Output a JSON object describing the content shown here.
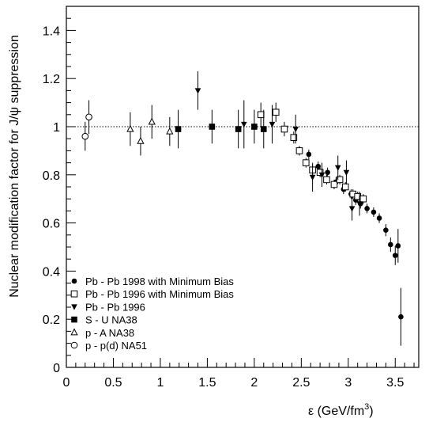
{
  "chart_data": {
    "type": "scatter",
    "ylabel": "Nuclear modification factor for J/ψ suppression",
    "xlabel_prefix": "ε  (GeV/fm",
    "xlabel_sup": "3",
    "xlabel_suffix": ")",
    "xlim": [
      0,
      3.75
    ],
    "ylim": [
      0,
      1.5
    ],
    "x_ticks": [
      0,
      0.5,
      1,
      1.5,
      2,
      2.5,
      3,
      3.5
    ],
    "x_tick_labels": [
      "0",
      "0.5",
      "1",
      "1.5",
      "2",
      "2.5",
      "3",
      "3.5"
    ],
    "y_ticks": [
      0,
      0.2,
      0.4,
      0.6,
      0.8,
      1,
      1.2,
      1.4
    ],
    "y_tick_labels": [
      "0",
      "0.2",
      "0.4",
      "0.6",
      "0.8",
      "1",
      "1.2",
      "1.4"
    ],
    "reference_line_y": 1.0,
    "legend_position": "bottom-left",
    "series": [
      {
        "name": "Pb - Pb 1998 with Minimum Bias",
        "marker": "filled-circle",
        "points": [
          [
            2.58,
            0.885,
            0.02
          ],
          [
            2.68,
            0.835,
            0.02
          ],
          [
            2.78,
            0.81,
            0.02
          ],
          [
            2.87,
            0.77,
            0.02
          ],
          [
            2.95,
            0.74,
            0.02
          ],
          [
            3.03,
            0.72,
            0.02
          ],
          [
            3.08,
            0.695,
            0.02
          ],
          [
            3.13,
            0.68,
            0.02
          ],
          [
            3.2,
            0.66,
            0.02
          ],
          [
            3.27,
            0.645,
            0.02
          ],
          [
            3.33,
            0.62,
            0.02
          ],
          [
            3.4,
            0.57,
            0.025
          ],
          [
            3.45,
            0.51,
            0.03
          ],
          [
            3.5,
            0.465,
            0.04
          ],
          [
            3.53,
            0.505,
            0.07
          ],
          [
            3.56,
            0.21,
            0.12
          ]
        ]
      },
      {
        "name": "Pb - Pb 1996 with Minimum Bias",
        "marker": "open-square",
        "points": [
          [
            2.07,
            1.05,
            0.05
          ],
          [
            2.23,
            1.06,
            0.04
          ],
          [
            2.32,
            0.99,
            0.03
          ],
          [
            2.42,
            0.955,
            0.025
          ],
          [
            2.48,
            0.9,
            0.02
          ],
          [
            2.55,
            0.85,
            0.02
          ],
          [
            2.62,
            0.82,
            0.02
          ],
          [
            2.7,
            0.81,
            0.02
          ],
          [
            2.77,
            0.78,
            0.02
          ],
          [
            2.85,
            0.76,
            0.02
          ],
          [
            2.91,
            0.78,
            0.02
          ],
          [
            2.97,
            0.75,
            0.02
          ],
          [
            3.05,
            0.72,
            0.02
          ],
          [
            3.1,
            0.71,
            0.02
          ],
          [
            3.16,
            0.7,
            0.02
          ]
        ]
      },
      {
        "name": "Pb - Pb 1996",
        "marker": "filled-triangle-down",
        "points": [
          [
            1.4,
            1.15,
            0.08
          ],
          [
            1.89,
            1.01,
            0.1
          ],
          [
            2.19,
            1.01,
            0.08
          ],
          [
            2.44,
            0.99,
            0.06
          ],
          [
            2.62,
            0.79,
            0.06
          ],
          [
            2.72,
            0.8,
            0.05
          ],
          [
            2.89,
            0.83,
            0.05
          ],
          [
            2.98,
            0.81,
            0.05
          ],
          [
            3.04,
            0.66,
            0.05
          ],
          [
            3.12,
            0.68,
            0.05
          ]
        ]
      },
      {
        "name": "S - U     NA38",
        "marker": "filled-square",
        "points": [
          [
            1.19,
            0.99,
            0.08
          ],
          [
            1.55,
            1.0,
            0.07
          ],
          [
            1.83,
            0.99,
            0.08
          ],
          [
            2.0,
            1.0,
            0.07
          ],
          [
            2.1,
            0.99,
            0.08
          ]
        ]
      },
      {
        "name": "p - A     NA38",
        "marker": "open-triangle-up",
        "points": [
          [
            0.68,
            0.99,
            0.07
          ],
          [
            0.79,
            0.94,
            0.06
          ],
          [
            0.91,
            1.02,
            0.07
          ],
          [
            1.1,
            0.98,
            0.06
          ]
        ]
      },
      {
        "name": "p - p(d)  NA51",
        "marker": "open-circle",
        "points": [
          [
            0.2,
            0.96,
            0.06
          ],
          [
            0.24,
            1.04,
            0.07
          ]
        ]
      }
    ]
  }
}
